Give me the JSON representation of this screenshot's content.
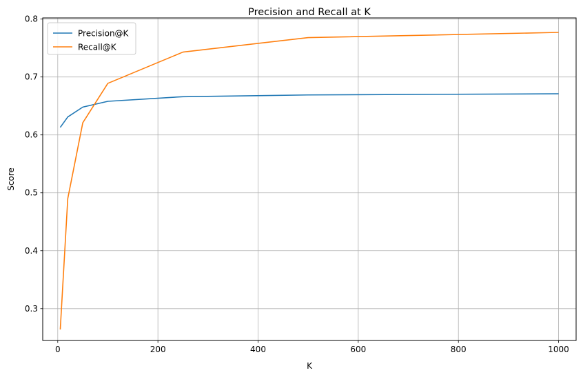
{
  "chart_data": {
    "type": "line",
    "title": "Precision and Recall at K",
    "xlabel": "K",
    "ylabel": "Score",
    "xlim": [
      -30,
      1035
    ],
    "ylim": [
      0.245,
      0.802
    ],
    "xticks": [
      0,
      200,
      400,
      600,
      800,
      1000
    ],
    "yticks": [
      0.3,
      0.4,
      0.5,
      0.6,
      0.7,
      0.8
    ],
    "grid": true,
    "legend_position": "top-left",
    "x": [
      5,
      20,
      50,
      100,
      250,
      500,
      1000
    ],
    "series": [
      {
        "name": "Precision@K",
        "color": "#1f77b4",
        "values": [
          0.613,
          0.631,
          0.648,
          0.658,
          0.666,
          0.669,
          0.671
        ]
      },
      {
        "name": "Recall@K",
        "color": "#ff7f0e",
        "values": [
          0.264,
          0.49,
          0.621,
          0.689,
          0.743,
          0.768,
          0.777
        ]
      }
    ]
  }
}
